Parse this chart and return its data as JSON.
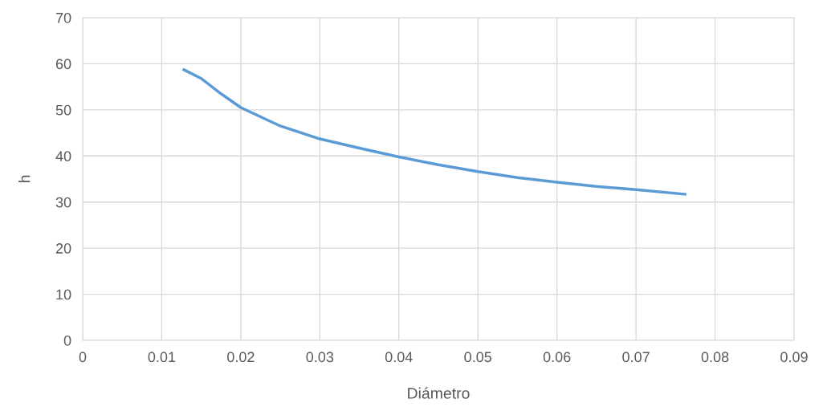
{
  "chart_data": {
    "type": "line",
    "xlabel": "Diámetro",
    "ylabel": "h",
    "series": [
      {
        "color": "#5b9bd5",
        "x": [
          0.0128,
          0.015,
          0.0175,
          0.02,
          0.025,
          0.03,
          0.035,
          0.04,
          0.045,
          0.05,
          0.055,
          0.06,
          0.065,
          0.07,
          0.0762
        ],
        "values": [
          58.7,
          56.8,
          53.5,
          50.5,
          46.5,
          43.7,
          41.7,
          39.8,
          38.1,
          36.6,
          35.3,
          34.3,
          33.4,
          32.7,
          31.7
        ]
      }
    ],
    "xlim": [
      0,
      0.09
    ],
    "xticks": [
      {
        "value": 0,
        "label": "0"
      },
      0.01,
      0.02,
      0.03,
      0.04,
      0.05,
      0.06,
      0.07,
      0.08,
      0.09
    ],
    "ylim": [
      0,
      70
    ],
    "yticks": [
      0,
      10,
      20,
      30,
      40,
      50,
      60,
      70
    ],
    "grid": true,
    "marker": "none",
    "line_style": "solid"
  }
}
